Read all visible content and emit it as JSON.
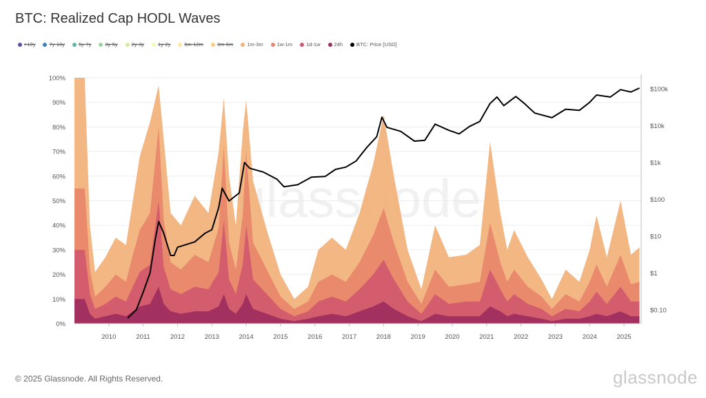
{
  "title": "BTC: Realized Cap HODL Waves",
  "legend": [
    {
      "label": ">10y",
      "color": "#5e4fa2",
      "active": false
    },
    {
      "label": "7y-10y",
      "color": "#3e7fb8",
      "active": false
    },
    {
      "label": "5y-7y",
      "color": "#5cb7a9",
      "active": false
    },
    {
      "label": "3y-5y",
      "color": "#9dd4a4",
      "active": false
    },
    {
      "label": "2y-3y",
      "color": "#d4ec9c",
      "active": false
    },
    {
      "label": "1y-2y",
      "color": "#f4f8b0",
      "active": false
    },
    {
      "label": "6m-12m",
      "color": "#fde9a0",
      "active": false
    },
    {
      "label": "3m-6m",
      "color": "#fbcd7e",
      "active": false
    },
    {
      "label": "1m-3m",
      "color": "#f2b17a",
      "active": true
    },
    {
      "label": "1w-1m",
      "color": "#e8866a",
      "active": true
    },
    {
      "label": "1d-1w",
      "color": "#d0596e",
      "active": true
    },
    {
      "label": "24h",
      "color": "#9e2e5e",
      "active": true
    },
    {
      "label": "BTC: Price [USD]",
      "color": "#000000",
      "active": true
    }
  ],
  "watermark": "glassnode",
  "footer": "© 2025 Glassnode. All Rights Reserved.",
  "logo": "glassnode",
  "chart_data": {
    "type": "area",
    "stacked": true,
    "title": "BTC: Realized Cap HODL Waves",
    "x_ticks": [
      "2010",
      "2011",
      "2012",
      "2013",
      "2014",
      "2015",
      "2016",
      "2017",
      "2018",
      "2019",
      "2020",
      "2021",
      "2022",
      "2023",
      "2024",
      "2025"
    ],
    "xlim": [
      2009.0,
      2025.5
    ],
    "y_left": {
      "ticks": [
        "0%",
        "10%",
        "20%",
        "30%",
        "40%",
        "50%",
        "60%",
        "70%",
        "80%",
        "90%",
        "100%"
      ],
      "ylim": [
        0,
        100
      ]
    },
    "y_right": {
      "scale": "log",
      "ticks": [
        "$0.10",
        "$1",
        "$10",
        "$100",
        "$1k",
        "$10k",
        "$100k"
      ],
      "tick_values": [
        0.1,
        1,
        10,
        100,
        1000,
        10000,
        100000
      ]
    },
    "grid": true,
    "legend_position": "top",
    "x": [
      2009.0,
      2009.3,
      2009.45,
      2009.6,
      2009.9,
      2010.2,
      2010.5,
      2010.7,
      2010.9,
      2011.2,
      2011.45,
      2011.6,
      2011.8,
      2012.1,
      2012.5,
      2012.9,
      2013.2,
      2013.35,
      2013.5,
      2013.7,
      2013.9,
      2014.0,
      2014.2,
      2014.6,
      2015.0,
      2015.4,
      2015.8,
      2016.1,
      2016.5,
      2016.9,
      2017.3,
      2017.7,
      2018.0,
      2018.3,
      2018.7,
      2019.1,
      2019.5,
      2019.9,
      2020.4,
      2020.8,
      2021.1,
      2021.4,
      2021.6,
      2021.8,
      2022.2,
      2022.6,
      2022.9,
      2023.3,
      2023.7,
      2024.0,
      2024.2,
      2024.5,
      2024.9,
      2025.2,
      2025.45
    ],
    "series": [
      {
        "name": "24h",
        "color": "#9e2e5e",
        "values": [
          10,
          10,
          4,
          2,
          3,
          4,
          3,
          5,
          7,
          8,
          15,
          8,
          5,
          4,
          5,
          5,
          7,
          12,
          6,
          4,
          8,
          12,
          6,
          4,
          2,
          1,
          2,
          3,
          4,
          3,
          5,
          7,
          9,
          6,
          3,
          1,
          4,
          3,
          3,
          3,
          7,
          5,
          3,
          4,
          3,
          2,
          1,
          2,
          2,
          3,
          4,
          3,
          5,
          3,
          3
        ]
      },
      {
        "name": "1d-1w",
        "color": "#d0596e",
        "values": [
          20,
          20,
          8,
          4,
          5,
          7,
          6,
          10,
          14,
          16,
          35,
          15,
          9,
          8,
          10,
          9,
          14,
          30,
          12,
          8,
          16,
          28,
          12,
          8,
          4,
          2,
          3,
          6,
          7,
          6,
          9,
          13,
          17,
          12,
          6,
          3,
          8,
          5,
          6,
          6,
          15,
          9,
          6,
          8,
          5,
          4,
          2,
          4,
          3,
          6,
          9,
          5,
          10,
          6,
          6
        ]
      },
      {
        "name": "1w-1m",
        "color": "#e8866a",
        "values": [
          25,
          25,
          10,
          5,
          7,
          9,
          8,
          13,
          17,
          21,
          30,
          19,
          11,
          10,
          13,
          11,
          18,
          30,
          15,
          10,
          20,
          30,
          15,
          10,
          5,
          3,
          4,
          8,
          9,
          8,
          11,
          16,
          21,
          15,
          8,
          4,
          10,
          7,
          7,
          8,
          19,
          11,
          8,
          10,
          7,
          5,
          3,
          6,
          4,
          8,
          11,
          7,
          13,
          7,
          8
        ]
      },
      {
        "name": "1m-3m",
        "color": "#f2b17a",
        "values": [
          45,
          45,
          18,
          10,
          12,
          15,
          15,
          22,
          30,
          37,
          17,
          33,
          20,
          18,
          24,
          20,
          31,
          20,
          27,
          18,
          34,
          21,
          25,
          16,
          9,
          4,
          6,
          13,
          15,
          13,
          20,
          29,
          38,
          27,
          13,
          6,
          18,
          12,
          12,
          15,
          33,
          20,
          13,
          16,
          12,
          7,
          4,
          10,
          8,
          13,
          20,
          12,
          22,
          12,
          14
        ]
      }
    ],
    "price_series": {
      "name": "BTC: Price [USD]",
      "color": "#000000",
      "x": [
        2010.55,
        2010.8,
        2011.0,
        2011.2,
        2011.35,
        2011.45,
        2011.6,
        2011.8,
        2011.9,
        2012.0,
        2012.5,
        2012.8,
        2013.0,
        2013.2,
        2013.3,
        2013.5,
        2013.8,
        2013.95,
        2014.1,
        2014.5,
        2014.9,
        2015.1,
        2015.5,
        2015.9,
        2016.3,
        2016.6,
        2016.9,
        2017.2,
        2017.5,
        2017.8,
        2017.95,
        2018.1,
        2018.5,
        2018.9,
        2019.2,
        2019.5,
        2019.9,
        2020.2,
        2020.5,
        2020.8,
        2021.1,
        2021.3,
        2021.5,
        2021.85,
        2022.1,
        2022.4,
        2022.9,
        2023.3,
        2023.7,
        2024.0,
        2024.2,
        2024.6,
        2024.9,
        2025.2,
        2025.45
      ],
      "values": [
        0.06,
        0.1,
        0.3,
        1,
        8,
        25,
        12,
        3,
        3,
        5,
        7,
        12,
        15,
        60,
        200,
        90,
        150,
        1000,
        700,
        550,
        350,
        220,
        250,
        400,
        420,
        650,
        750,
        1100,
        2500,
        5000,
        17000,
        9000,
        7000,
        3800,
        4000,
        11000,
        7500,
        6000,
        9500,
        13000,
        40000,
        60000,
        35000,
        62000,
        40000,
        22000,
        16500,
        28000,
        26000,
        43000,
        68000,
        60000,
        95000,
        82000,
        105000
      ]
    }
  }
}
